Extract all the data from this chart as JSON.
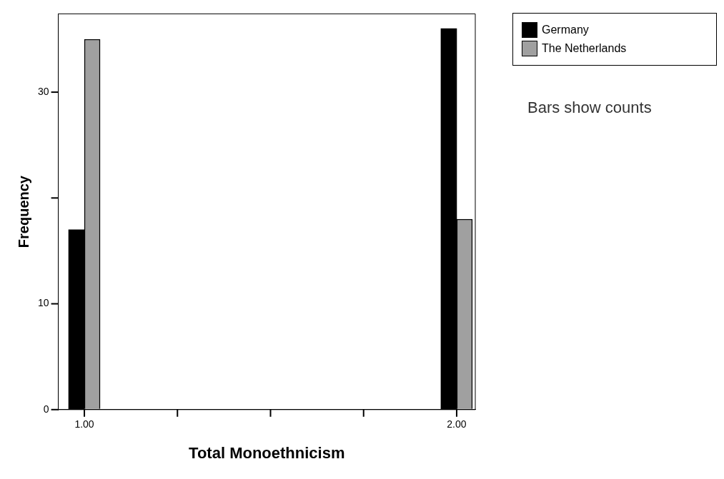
{
  "chart_data": {
    "type": "bar",
    "xlabel": "Total Monoethnicism",
    "ylabel": "Frequency",
    "x": [
      1,
      2
    ],
    "series": [
      {
        "name": "Germany",
        "color": "#000000",
        "values": [
          17,
          36
        ]
      },
      {
        "name": "The Netherlands",
        "color": "#a0a0a0",
        "values": [
          35,
          18
        ]
      }
    ],
    "xlim": [
      0.93,
      2.05
    ],
    "xticks": [
      {
        "value": 1,
        "label": "1.00"
      },
      {
        "value": 1.25,
        "label": null
      },
      {
        "value": 1.5,
        "label": null
      },
      {
        "value": 1.75,
        "label": null
      },
      {
        "value": 2,
        "label": "2.00"
      }
    ],
    "ylim": [
      0,
      37.4
    ],
    "yticks": [
      0,
      10,
      {
        "value": 20,
        "label": null
      },
      30
    ],
    "legend": "top right",
    "annotations": [
      "Bars show counts"
    ]
  }
}
